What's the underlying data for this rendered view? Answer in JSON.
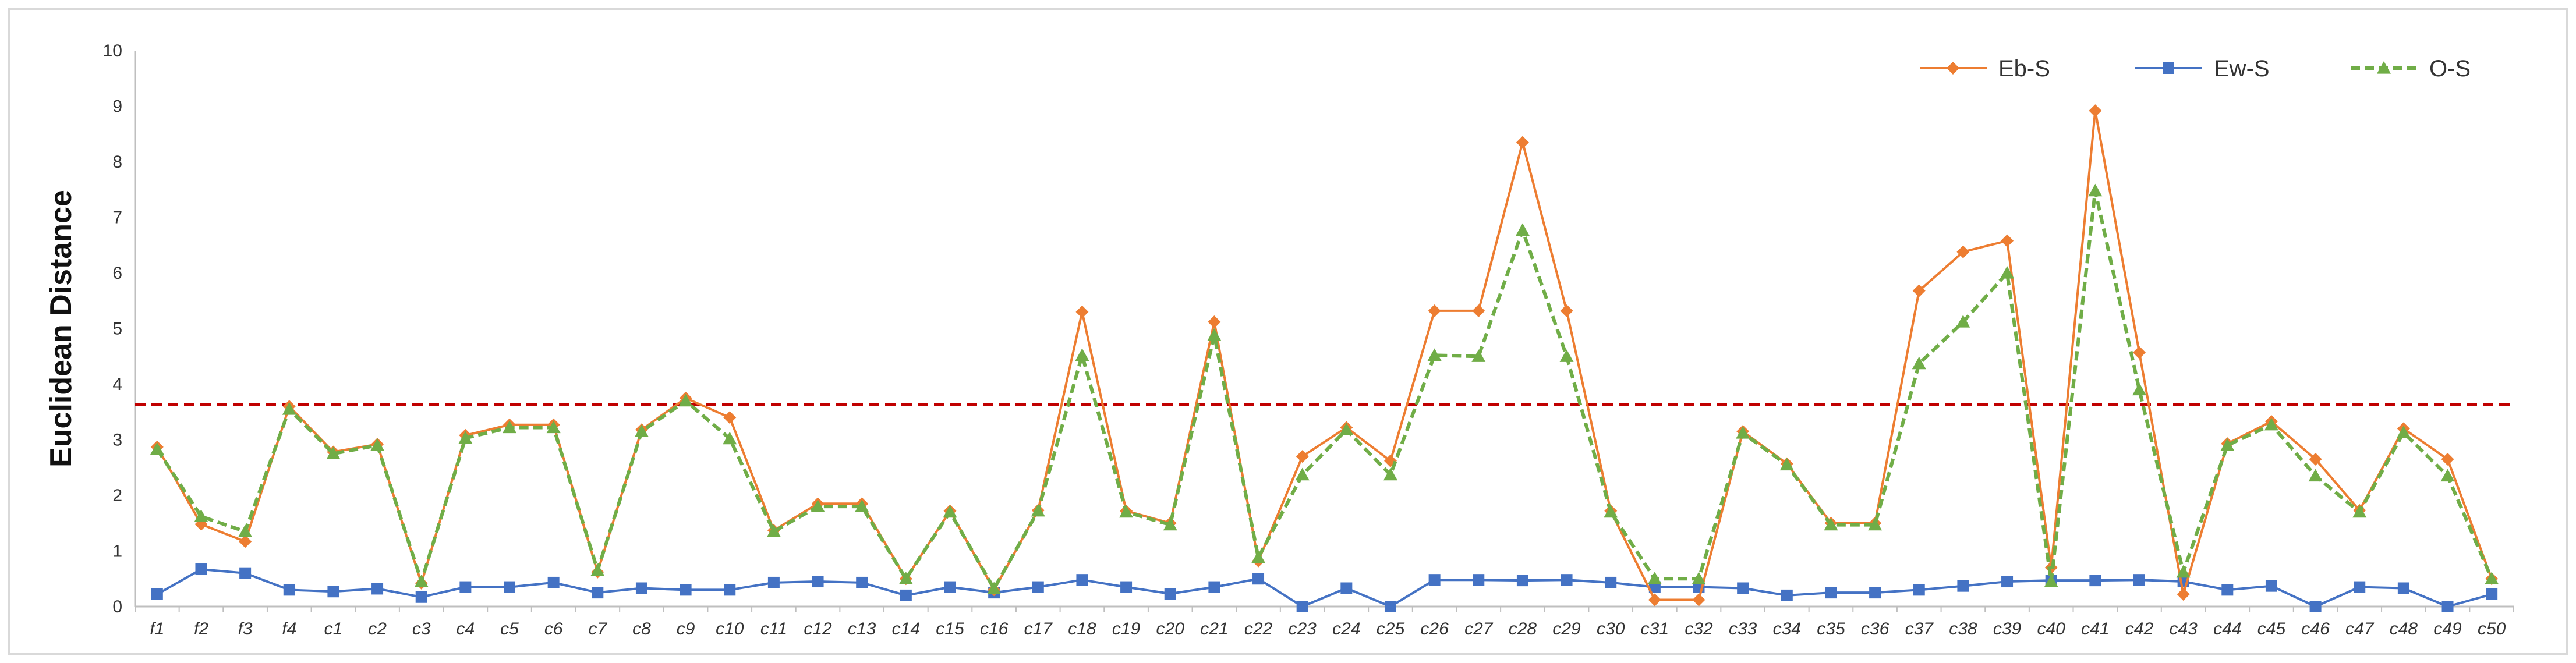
{
  "chart_data": {
    "type": "line",
    "title": "",
    "xlabel": "",
    "ylabel": "Euclidean Distance",
    "ylim": [
      0,
      10
    ],
    "y_ticks": [
      0,
      1,
      2,
      3,
      4,
      5,
      6,
      7,
      8,
      9,
      10
    ],
    "grid": false,
    "legend_position": "top-right",
    "reference_line": {
      "y": 3.63,
      "color": "#c00000",
      "style": "dashed"
    },
    "categories": [
      "f1",
      "f2",
      "f3",
      "f4",
      "c1",
      "c2",
      "c3",
      "c4",
      "c5",
      "c6",
      "c7",
      "c8",
      "c9",
      "c10",
      "c11",
      "c12",
      "c13",
      "c14",
      "c15",
      "c16",
      "c17",
      "c18",
      "c19",
      "c20",
      "c21",
      "c22",
      "c23",
      "c24",
      "c25",
      "c26",
      "c27",
      "c28",
      "c29",
      "c30",
      "c31",
      "c32",
      "c33",
      "c34",
      "c35",
      "c36",
      "c37",
      "c38",
      "c39",
      "c40",
      "c41",
      "c42",
      "c43",
      "c44",
      "c45",
      "c46",
      "c47",
      "c48",
      "c49",
      "c50"
    ],
    "series": [
      {
        "name": "Eb-S",
        "color": "#ed7d31",
        "marker": "diamond",
        "line_style": "solid",
        "values": [
          2.87,
          1.48,
          1.17,
          3.6,
          2.78,
          2.92,
          0.42,
          3.08,
          3.27,
          3.27,
          0.62,
          3.18,
          3.75,
          3.4,
          1.37,
          1.85,
          1.85,
          0.5,
          1.72,
          0.3,
          1.73,
          5.3,
          1.72,
          1.5,
          5.12,
          0.82,
          2.7,
          3.22,
          2.62,
          5.32,
          5.32,
          8.35,
          5.32,
          1.72,
          0.12,
          0.12,
          3.15,
          2.57,
          1.5,
          1.5,
          5.68,
          6.38,
          6.58,
          0.7,
          8.92,
          4.57,
          0.22,
          2.93,
          3.33,
          2.65,
          1.73,
          3.2,
          2.65,
          0.5
        ]
      },
      {
        "name": "Ew-S",
        "color": "#4472c4",
        "marker": "square",
        "line_style": "solid",
        "values": [
          0.22,
          0.67,
          0.6,
          0.3,
          0.27,
          0.32,
          0.17,
          0.35,
          0.35,
          0.43,
          0.25,
          0.33,
          0.3,
          0.3,
          0.43,
          0.45,
          0.43,
          0.2,
          0.35,
          0.25,
          0.35,
          0.48,
          0.35,
          0.23,
          0.35,
          0.5,
          0.0,
          0.33,
          0.0,
          0.48,
          0.48,
          0.47,
          0.48,
          0.43,
          0.35,
          0.35,
          0.33,
          0.2,
          0.25,
          0.25,
          0.3,
          0.37,
          0.45,
          0.47,
          0.47,
          0.48,
          0.45,
          0.3,
          0.37,
          0.0,
          0.35,
          0.33,
          0.0,
          0.22
        ]
      },
      {
        "name": "O-S",
        "color": "#70ad47",
        "marker": "triangle",
        "line_style": "dashed",
        "values": [
          2.83,
          1.62,
          1.35,
          3.55,
          2.75,
          2.9,
          0.45,
          3.03,
          3.22,
          3.22,
          0.65,
          3.15,
          3.7,
          3.02,
          1.35,
          1.8,
          1.8,
          0.5,
          1.7,
          0.32,
          1.72,
          4.52,
          1.7,
          1.47,
          4.88,
          0.88,
          2.37,
          3.18,
          2.37,
          4.52,
          4.5,
          6.77,
          4.5,
          1.7,
          0.5,
          0.5,
          3.12,
          2.55,
          1.47,
          1.47,
          4.37,
          5.12,
          6.0,
          0.45,
          7.48,
          3.9,
          0.62,
          2.9,
          3.27,
          2.35,
          1.7,
          3.13,
          2.35,
          0.5
        ]
      }
    ]
  }
}
